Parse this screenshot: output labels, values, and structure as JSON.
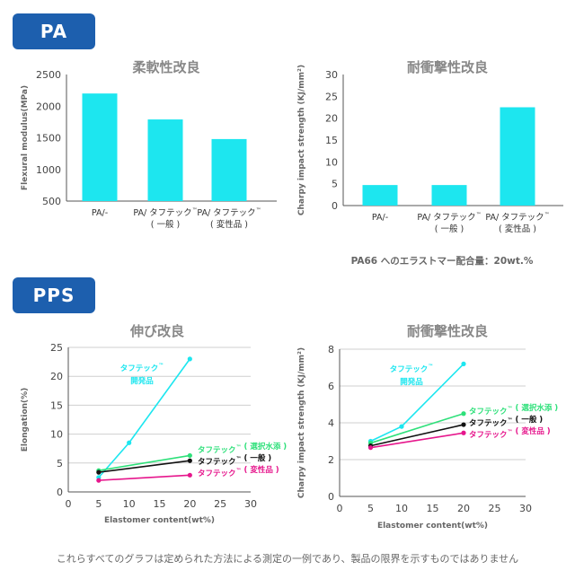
{
  "sections": {
    "pa": "PA",
    "pps": "PPS"
  },
  "pa_note": "PA66 へのエラストマー配合量：20wt.%",
  "footer": "これらすべてのグラフは定められた方法による測定の一例であり、製品の限界を示すものではありません",
  "colors": {
    "badge": "#1d5fae",
    "bar": "#1de6ef",
    "cyan": "#1de6ef",
    "green": "#2ee07a",
    "black": "#111111",
    "magenta": "#e6168c",
    "grid": "#cfcfcf"
  },
  "chart_data": [
    {
      "type": "bar",
      "title": "柔軟性改良",
      "ylabel": "Flexural modulus(MPa)",
      "ylim": [
        500,
        2500
      ],
      "yticks": [
        500,
        1000,
        1500,
        2000,
        2500
      ],
      "categories": [
        [
          "PA/-"
        ],
        [
          "PA/ タフテック™",
          "( 一般 )"
        ],
        [
          "PA/ タフテック™",
          "( 変性品 )"
        ]
      ],
      "values": [
        2200,
        1790,
        1480
      ]
    },
    {
      "type": "bar",
      "title": "耐衝撃性改良",
      "ylabel": "Charpy impact strength (KJ/mm²)",
      "ylim": [
        0,
        30
      ],
      "yticks": [
        0,
        5,
        10,
        15,
        20,
        25,
        30
      ],
      "categories": [
        [
          "PA/-"
        ],
        [
          "PA/ タフテック™",
          "( 一般 )"
        ],
        [
          "PA/ タフテック™",
          "( 変性品 )"
        ]
      ],
      "values": [
        4.7,
        4.7,
        22.5
      ]
    },
    {
      "type": "line",
      "title": "伸び改良",
      "xlabel": "Elastomer content(wt%)",
      "ylabel": "Elongation(%)",
      "xlim": [
        0,
        30
      ],
      "ylim": [
        0,
        25
      ],
      "xticks": [
        0,
        5,
        10,
        15,
        20,
        25,
        30
      ],
      "yticks": [
        0,
        5,
        10,
        15,
        20,
        25
      ],
      "series": [
        {
          "name": "タフテック™ 開発品",
          "color": "#1de6ef",
          "x": [
            5,
            10,
            20
          ],
          "y": [
            2.5,
            8.5,
            23
          ]
        },
        {
          "name": "タフテック™ ( 選択水添 )",
          "color": "#2ee07a",
          "x": [
            5,
            20
          ],
          "y": [
            3.7,
            6.3
          ]
        },
        {
          "name": "タフテック™ ( 一般 )",
          "color": "#111111",
          "x": [
            5,
            20
          ],
          "y": [
            3.4,
            5.4
          ]
        },
        {
          "name": "タフテック™ ( 変性品 )",
          "color": "#e6168c",
          "x": [
            5,
            20
          ],
          "y": [
            2.0,
            2.9
          ]
        }
      ]
    },
    {
      "type": "line",
      "title": "耐衝撃性改良",
      "xlabel": "Elastomer content(wt%)",
      "ylabel": "Charpy impact strength (KJ/mm²)",
      "xlim": [
        0,
        30
      ],
      "ylim": [
        0,
        8
      ],
      "xticks": [
        0,
        5,
        10,
        15,
        20,
        25,
        30
      ],
      "yticks": [
        0,
        2,
        4,
        6,
        8
      ],
      "series": [
        {
          "name": "タフテック™ 開発品",
          "color": "#1de6ef",
          "x": [
            5,
            10,
            20
          ],
          "y": [
            3.0,
            3.8,
            7.2
          ]
        },
        {
          "name": "タフテック™ ( 選択水添 )",
          "color": "#2ee07a",
          "x": [
            5,
            20
          ],
          "y": [
            2.9,
            4.5
          ]
        },
        {
          "name": "タフテック™ ( 一般 )",
          "color": "#111111",
          "x": [
            5,
            20
          ],
          "y": [
            2.75,
            3.9
          ]
        },
        {
          "name": "タフテック™ ( 変性品 )",
          "color": "#e6168c",
          "x": [
            5,
            20
          ],
          "y": [
            2.65,
            3.45
          ]
        }
      ]
    }
  ]
}
